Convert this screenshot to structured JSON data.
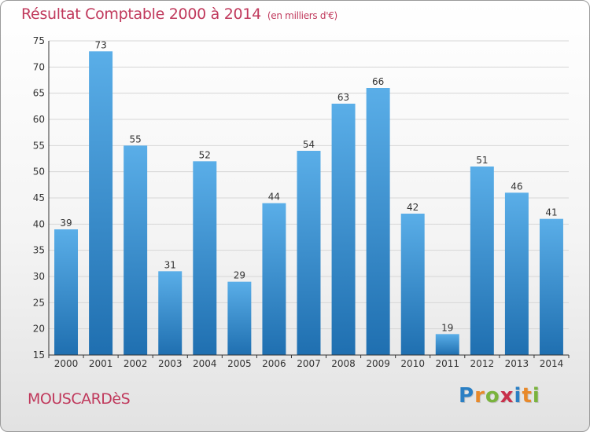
{
  "title": "Résultat Comptable 2000 à 2014",
  "subtitle": "(en milliers d'€)",
  "commune": "MOUSCARDèS",
  "logo": {
    "text": "Proxiti",
    "letters": [
      {
        "ch": "P",
        "color": "#2a7fc4"
      },
      {
        "ch": "r",
        "color": "#e8892a"
      },
      {
        "ch": "o",
        "color": "#7ab33d"
      },
      {
        "ch": "x",
        "color": "#c8304a"
      },
      {
        "ch": "i",
        "color": "#2a7fc4"
      },
      {
        "ch": "t",
        "color": "#e8892a"
      },
      {
        "ch": "i",
        "color": "#7ab33d"
      }
    ]
  },
  "colors": {
    "bar_top": "#5aaee8",
    "bar_bottom": "#1f6fb0",
    "grid": "#d6d6d6",
    "axis": "#333333",
    "title": "#c0395c"
  },
  "chart_data": {
    "type": "bar",
    "categories": [
      "2000",
      "2001",
      "2002",
      "2003",
      "2004",
      "2005",
      "2006",
      "2007",
      "2008",
      "2009",
      "2010",
      "2011",
      "2012",
      "2013",
      "2014"
    ],
    "values": [
      39,
      73,
      55,
      31,
      52,
      29,
      44,
      54,
      63,
      66,
      42,
      19,
      51,
      46,
      41
    ],
    "ylim": [
      15,
      75
    ],
    "yticks": [
      15,
      20,
      25,
      30,
      35,
      40,
      45,
      50,
      55,
      60,
      65,
      70,
      75
    ],
    "grid": true,
    "xlabel": "",
    "ylabel": ""
  }
}
